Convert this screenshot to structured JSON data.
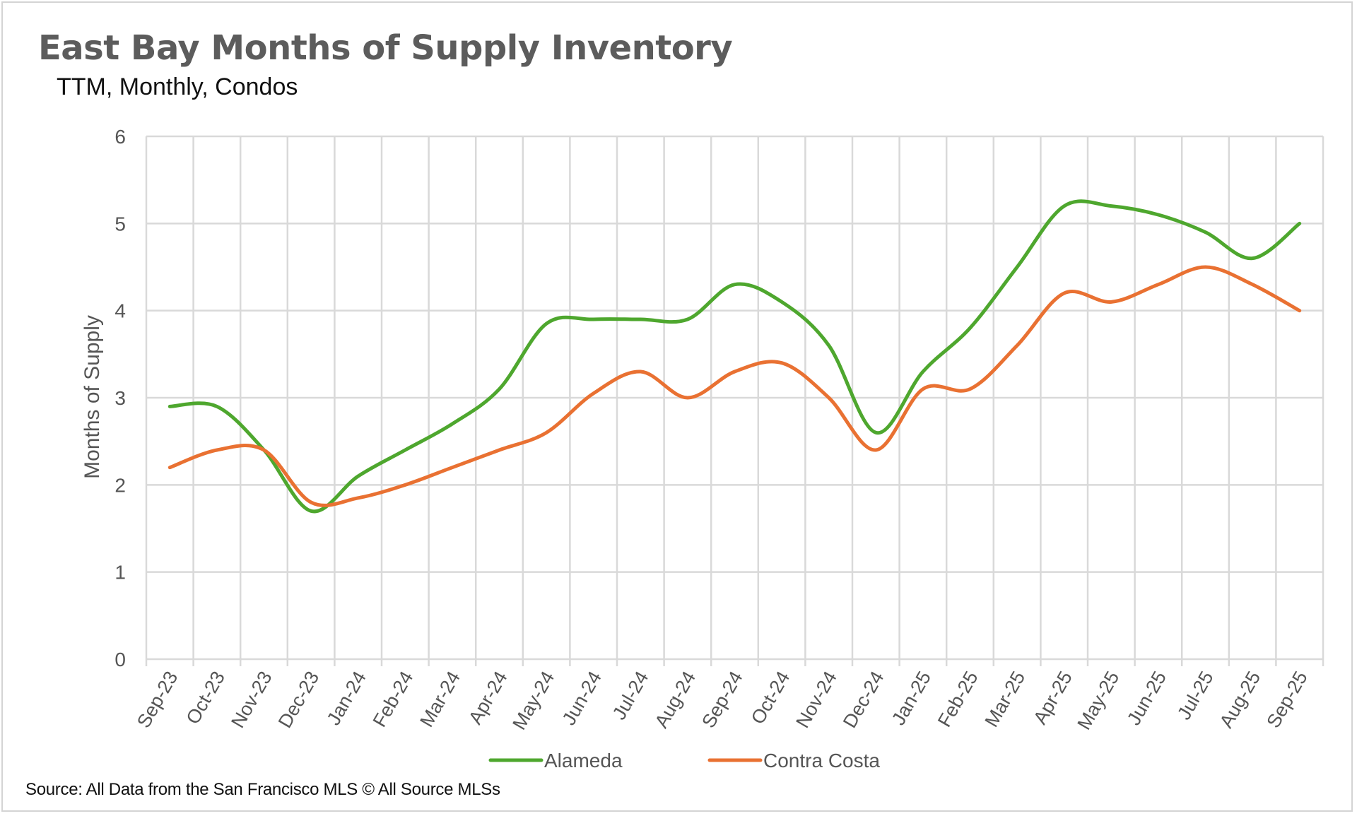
{
  "title": "East Bay Months of Supply Inventory",
  "subtitle": "TTM, Monthly, Condos",
  "source": "Source: All Data from the San Francisco MLS © All Source MLSs",
  "chart_data": {
    "type": "line",
    "title": "East Bay Months of Supply Inventory",
    "subtitle": "TTM, Monthly, Condos",
    "xlabel": "",
    "ylabel": "Months of Supply",
    "ylim": [
      0,
      6
    ],
    "yticks": [
      0,
      1,
      2,
      3,
      4,
      5,
      6
    ],
    "grid": true,
    "smooth": true,
    "legend_position": "bottom",
    "categories": [
      "Sep-23",
      "Oct-23",
      "Nov-23",
      "Dec-23",
      "Jan-24",
      "Feb-24",
      "Mar-24",
      "Apr-24",
      "May-24",
      "Jun-24",
      "Jul-24",
      "Aug-24",
      "Sep-24",
      "Oct-24",
      "Nov-24",
      "Dec-24",
      "Jan-25",
      "Feb-25",
      "Mar-25",
      "Apr-25",
      "May-25",
      "Jun-25",
      "Jul-25",
      "Aug-25",
      "Sep-25"
    ],
    "series": [
      {
        "name": "Alameda",
        "color": "#4ea72e",
        "values": [
          2.9,
          2.9,
          2.4,
          1.7,
          2.1,
          2.4,
          2.7,
          3.1,
          3.85,
          3.9,
          3.9,
          3.9,
          4.3,
          4.1,
          3.6,
          2.6,
          3.3,
          3.8,
          4.5,
          5.2,
          5.2,
          5.1,
          4.9,
          4.6,
          5.0
        ]
      },
      {
        "name": "Contra Costa",
        "color": "#e97132",
        "values": [
          2.2,
          2.4,
          2.4,
          1.8,
          1.85,
          2.0,
          2.2,
          2.4,
          2.6,
          3.05,
          3.3,
          3.0,
          3.3,
          3.4,
          3.0,
          2.4,
          3.1,
          3.1,
          3.6,
          4.2,
          4.1,
          4.3,
          4.5,
          4.3,
          4.0
        ]
      }
    ]
  }
}
